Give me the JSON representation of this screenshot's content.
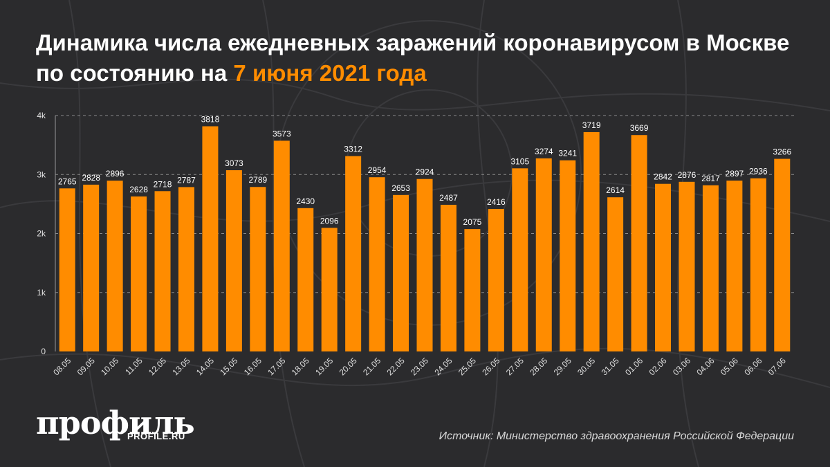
{
  "header": {
    "title_main": "Динамика числа ежедневных заражений коронавирусом в Москве по состоянию на",
    "title_accent": "7 июня 2021 года"
  },
  "footer": {
    "logo": "профиль",
    "logo_url": "PROFILE.RU",
    "source": "Источник: Министерство здравоохранения Российской Федерации"
  },
  "colors": {
    "background": "#2b2b2d",
    "bar": "#ff8c00",
    "accent": "#ff8c00",
    "text": "#ffffff",
    "grid": "#8a8a8a"
  },
  "chart_data": {
    "type": "bar",
    "categories": [
      "08.05",
      "09.05",
      "10.05",
      "11.05",
      "12.05",
      "13.05",
      "14.05",
      "15.05",
      "16.05",
      "17.05",
      "18.05",
      "19.05",
      "20.05",
      "21.05",
      "22.05",
      "23.05",
      "24.05",
      "25.05",
      "26.05",
      "27.05",
      "28.05",
      "29.05",
      "30.05",
      "31.05",
      "01.06",
      "02.06",
      "03.06",
      "04.06",
      "05.06",
      "06.06",
      "07.06"
    ],
    "values": [
      2765,
      2828,
      2896,
      2628,
      2718,
      2787,
      3818,
      3073,
      2789,
      3573,
      2430,
      2096,
      3312,
      2954,
      2653,
      2924,
      2487,
      2075,
      2416,
      3105,
      3274,
      3241,
      3719,
      2614,
      3669,
      2842,
      2876,
      2817,
      2897,
      2936,
      3266
    ],
    "ylim": [
      0,
      4000
    ],
    "yticks": [
      0,
      1000,
      2000,
      3000,
      4000
    ],
    "ytick_labels": [
      "0",
      "1k",
      "2k",
      "3k",
      "4k"
    ],
    "grid": true,
    "data_labels": true
  }
}
